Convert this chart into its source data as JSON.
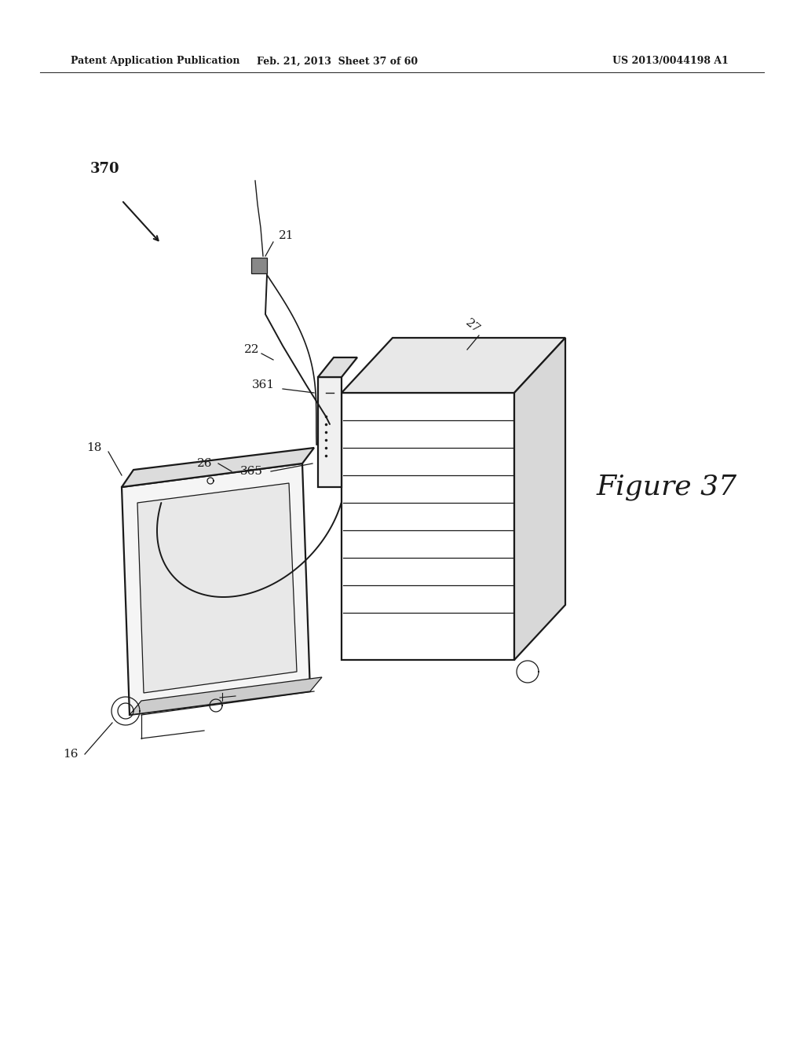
{
  "background_color": "#ffffff",
  "header_left": "Patent Application Publication",
  "header_center": "Feb. 21, 2013  Sheet 37 of 60",
  "header_right": "US 2013/0044198 A1",
  "figure_label": "Figure 37",
  "ref_370": "370",
  "ref_21": "21",
  "ref_22": "22",
  "ref_26": "26",
  "ref_27": "27",
  "ref_18": "18",
  "ref_16": "16",
  "ref_361": "361",
  "ref_365": "365"
}
